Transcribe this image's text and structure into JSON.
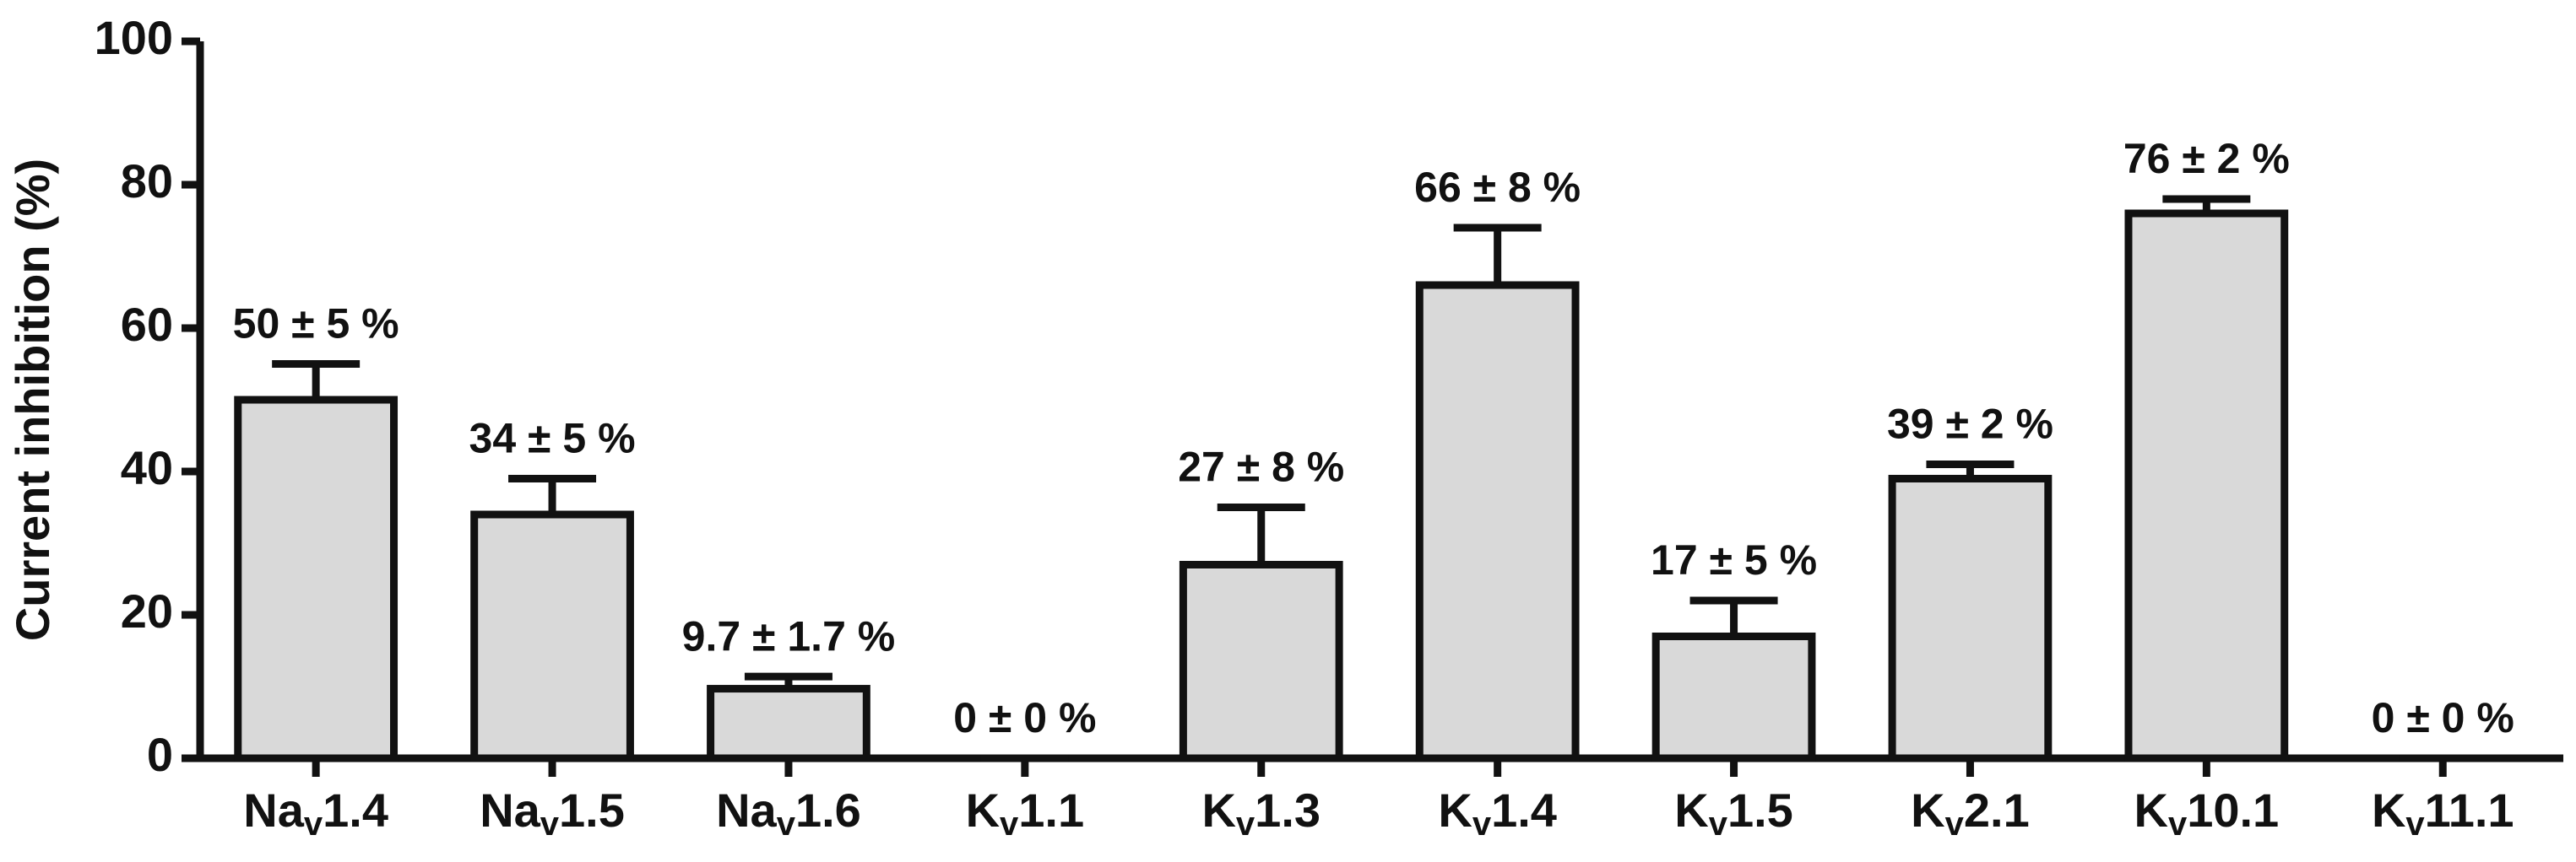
{
  "chart_data": {
    "type": "bar",
    "y_label": "Current inhibition (%)",
    "categories": [
      [
        "Na",
        "v",
        "1.4"
      ],
      [
        "Na",
        "v",
        "1.5"
      ],
      [
        "Na",
        "v",
        "1.6"
      ],
      [
        "K",
        "v",
        "1.1"
      ],
      [
        "K",
        "v",
        "1.3"
      ],
      [
        "K",
        "v",
        "1.4"
      ],
      [
        "K",
        "v",
        "1.5"
      ],
      [
        "K",
        "v",
        "2.1"
      ],
      [
        "K",
        "v",
        "10.1"
      ],
      [
        "K",
        "v",
        "11.1"
      ]
    ],
    "values": [
      50,
      34,
      9.7,
      0,
      27,
      66,
      17,
      39,
      76,
      0
    ],
    "errors": [
      5,
      5,
      1.7,
      0,
      8,
      8,
      5,
      2,
      2,
      0
    ],
    "value_labels": [
      "50 ± 5 %",
      "34 ± 5 %",
      "9.7 ± 1.7 %",
      "0 ± 0 %",
      "27 ± 8 %",
      "66 ± 8 %",
      "17 ± 5 %",
      "39 ± 2 %",
      "76 ± 2 %",
      "0 ± 0 %"
    ],
    "color": "#d9d9d9",
    "ylim": [
      0,
      100
    ],
    "yticks": [
      0,
      20,
      40,
      60,
      80,
      100
    ],
    "grid": false
  }
}
